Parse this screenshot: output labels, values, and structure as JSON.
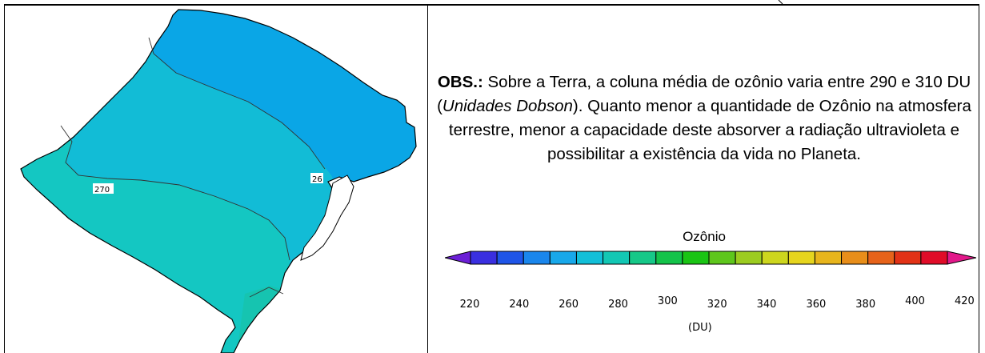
{
  "obs": {
    "label": "OBS.:",
    "text_before": " Sobre a Terra, a coluna média de ozônio varia entre 290 e 310 DU (",
    "italic": "Unidades Dobson",
    "text_after": "). Quanto menor a quantidade de Ozônio na atmosfera terrestre, menor a capacidade deste absorver a radiação ultravioleta e possibilitar a existência da vida no Planeta."
  },
  "legend": {
    "title": "Ozônio",
    "unit": "(DU)",
    "ticks": [
      "220",
      "240",
      "260",
      "280",
      "300",
      "320",
      "340",
      "360",
      "380",
      "400",
      "420"
    ],
    "colors": [
      "#6b1fd6",
      "#3a2fe0",
      "#1f55e8",
      "#1a86ec",
      "#18a8ea",
      "#12bfd8",
      "#12c7b4",
      "#16c888",
      "#14c34a",
      "#1ac414",
      "#5ec61c",
      "#9ccc20",
      "#cdd61e",
      "#e6d51e",
      "#e8b51c",
      "#e88e1a",
      "#e6631a",
      "#e23216",
      "#e00c28",
      "#e2188a"
    ]
  },
  "map": {
    "contour_labels": [
      "270",
      "26"
    ],
    "colors": {
      "north": "#0aa6e6",
      "middle": "#12bcd6",
      "south": "#14c7c2",
      "coast": "#16c4b0",
      "lagoon": "#ffffff"
    }
  }
}
